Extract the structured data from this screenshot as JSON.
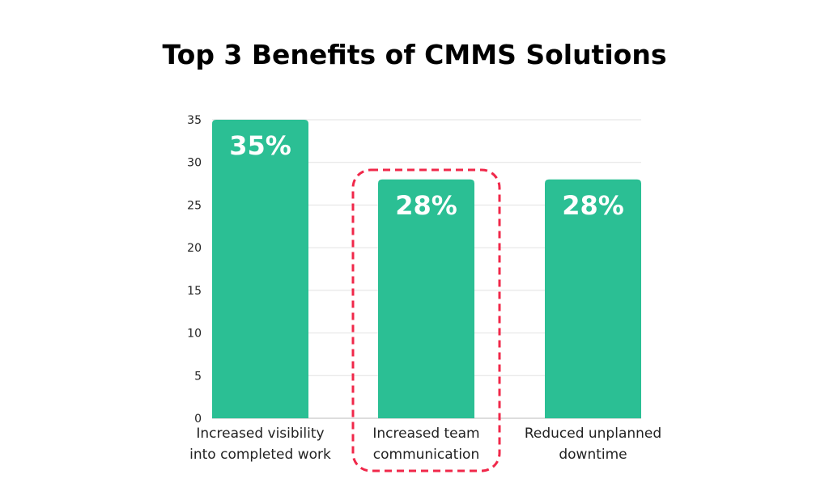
{
  "chart_data": {
    "type": "bar",
    "title": "Top 3 Benefits of CMMS Solutions",
    "categories": [
      [
        "Increased visibility",
        "into completed work"
      ],
      [
        "Increased team",
        "communication"
      ],
      [
        "Reduced unplanned",
        "downtime"
      ]
    ],
    "values": [
      35,
      28,
      28
    ],
    "data_labels": [
      "35%",
      "28%",
      "28%"
    ],
    "ylim": [
      0,
      35
    ],
    "yticks": [
      0,
      5,
      10,
      15,
      20,
      25,
      30,
      35
    ],
    "grid": true,
    "highlighted_index": 1,
    "colors": {
      "bar": "#2bbf94",
      "highlight": "#f0284a",
      "grid": "#e2e2e2"
    }
  }
}
